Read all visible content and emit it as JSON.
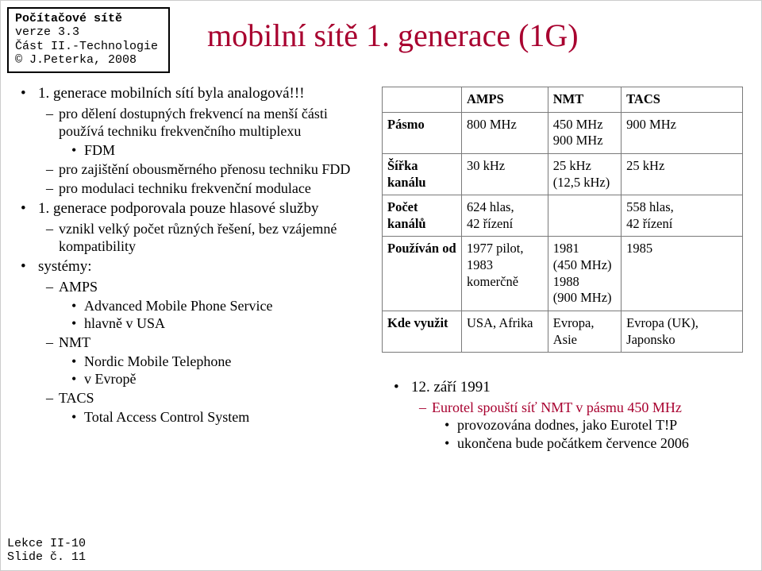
{
  "colors": {
    "accent": "#a8002f",
    "text": "#000000",
    "border": "#7a7a7a"
  },
  "header_box": {
    "line1": "Počítačové sítě",
    "line2": "verze 3.3",
    "line3": "Část II.-Technologie",
    "line4": "© J.Peterka, 2008"
  },
  "title": "mobilní sítě 1. generace (1G)",
  "left_bullets": {
    "a": "1. generace mobilních sítí byla analogová!!!",
    "a_sub1": "pro dělení dostupných frekvencí na menší části používá techniku frekvenčního multiplexu",
    "a_sub1_a": "FDM",
    "a_sub2": "pro zajištění obousměrného přenosu techniku FDD",
    "a_sub3": "pro modulaci techniku frekvenční modulace",
    "b": "1. generace podporovala pouze hlasové služby",
    "b_sub1": "vznikl velký počet různých řešení, bez vzájemné kompatibility",
    "c": "systémy:",
    "c_sub1": "AMPS",
    "c_sub1_a": "Advanced Mobile Phone Service",
    "c_sub1_b": "hlavně v USA",
    "c_sub2": "NMT",
    "c_sub2_a": "Nordic Mobile Telephone",
    "c_sub2_b": "v Evropě",
    "c_sub3": "TACS",
    "c_sub3_a": "Total Access Control System"
  },
  "table": {
    "head": {
      "c1": "",
      "c2": "AMPS",
      "c3": "NMT",
      "c4": "TACS"
    },
    "rows": {
      "r1": {
        "h": "Pásmo",
        "c2": "800 MHz",
        "c3": "450 MHz\n900 MHz",
        "c4": "900 MHz"
      },
      "r2": {
        "h": "Šířka kanálu",
        "c2": "30 kHz",
        "c3": "25 kHz\n(12,5 kHz)",
        "c4": "25 kHz"
      },
      "r3": {
        "h": "Počet kanálů",
        "c2": "624 hlas,\n42 řízení",
        "c3": "",
        "c4": "558 hlas,\n42 řízení"
      },
      "r4": {
        "h": "Používán od",
        "c2": "1977 pilot,\n1983 komerčně",
        "c3": "1981\n(450 MHz)\n1988\n(900 MHz)",
        "c4": "1985"
      },
      "r5": {
        "h": "Kde využit",
        "c2": "USA, Afrika",
        "c3": "Evropa, Asie",
        "c4": "Evropa (UK), Japonsko"
      }
    }
  },
  "right_notes": {
    "l1": "12. září 1991",
    "l2": "Eurotel spouští síť NMT v pásmu 450 MHz",
    "l3a": "provozována dodnes, jako Eurotel T!P",
    "l3b": "ukončena bude počátkem července 2006"
  },
  "footer": {
    "l1": "Lekce II-10",
    "l2": "Slide č. 11"
  }
}
